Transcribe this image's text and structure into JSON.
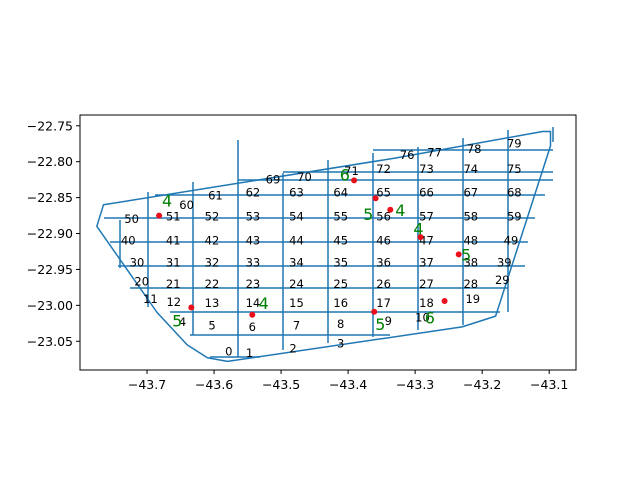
{
  "chart_data": {
    "type": "scatter",
    "title": "",
    "xlabel": "",
    "ylabel": "",
    "xlim": [
      -43.8,
      -43.06
    ],
    "ylim": [
      -23.09,
      -22.735
    ],
    "x_ticks": [
      -43.7,
      -43.6,
      -43.5,
      -43.4,
      -43.3,
      -43.2,
      -43.1
    ],
    "x_tick_labels": [
      "−43.7",
      "−43.6",
      "−43.5",
      "−43.4",
      "−43.3",
      "−43.2",
      "−43.1"
    ],
    "y_ticks": [
      -22.75,
      -22.8,
      -22.85,
      -22.9,
      -22.95,
      -23.0,
      -23.05
    ],
    "y_tick_labels": [
      "−22.75",
      "−22.80",
      "−22.85",
      "−22.90",
      "−22.95",
      "−23.00",
      "−23.05"
    ],
    "grid": false,
    "legend": "none",
    "colors": {
      "boundary": "#1f77b4",
      "points": "#e8101a",
      "marker_labels": "#008000"
    },
    "boundary": [
      [
        -43.11,
        -22.758
      ],
      [
        -43.098,
        -22.758
      ],
      [
        -43.098,
        -22.778
      ],
      [
        -43.18,
        -23.015
      ],
      [
        -43.23,
        -23.03
      ],
      [
        -43.58,
        -23.078
      ],
      [
        -43.61,
        -23.073
      ],
      [
        -43.64,
        -23.055
      ],
      [
        -43.685,
        -23.01
      ],
      [
        -43.775,
        -22.89
      ],
      [
        -43.765,
        -22.86
      ],
      [
        -43.33,
        -22.795
      ],
      [
        -43.11,
        -22.758
      ]
    ],
    "cell_labels": [
      {
        "text": "0",
        "x": -43.578,
        "y": -23.064
      },
      {
        "text": "1",
        "x": -43.547,
        "y": -23.066
      },
      {
        "text": "2",
        "x": -43.482,
        "y": -23.06
      },
      {
        "text": "3",
        "x": -43.411,
        "y": -23.053
      },
      {
        "text": "4",
        "x": -43.647,
        "y": -23.023
      },
      {
        "text": "5",
        "x": -43.603,
        "y": -23.028
      },
      {
        "text": "6",
        "x": -43.543,
        "y": -23.03
      },
      {
        "text": "7",
        "x": -43.477,
        "y": -23.028
      },
      {
        "text": "8",
        "x": -43.411,
        "y": -23.026
      },
      {
        "text": "9",
        "x": -43.34,
        "y": -23.022
      },
      {
        "text": "10",
        "x": -43.289,
        "y": -23.017
      },
      {
        "text": "11",
        "x": -43.695,
        "y": -22.991
      },
      {
        "text": "12",
        "x": -43.66,
        "y": -22.995
      },
      {
        "text": "13",
        "x": -43.603,
        "y": -22.997
      },
      {
        "text": "14",
        "x": -43.542,
        "y": -22.997
      },
      {
        "text": "15",
        "x": -43.477,
        "y": -22.997
      },
      {
        "text": "16",
        "x": -43.411,
        "y": -22.997
      },
      {
        "text": "17",
        "x": -43.347,
        "y": -22.997
      },
      {
        "text": "18",
        "x": -43.283,
        "y": -22.997
      },
      {
        "text": "19",
        "x": -43.214,
        "y": -22.991
      },
      {
        "text": "20",
        "x": -43.708,
        "y": -22.967
      },
      {
        "text": "21",
        "x": -43.661,
        "y": -22.97
      },
      {
        "text": "22",
        "x": -43.603,
        "y": -22.97
      },
      {
        "text": "23",
        "x": -43.542,
        "y": -22.97
      },
      {
        "text": "24",
        "x": -43.477,
        "y": -22.97
      },
      {
        "text": "25",
        "x": -43.411,
        "y": -22.97
      },
      {
        "text": "26",
        "x": -43.347,
        "y": -22.97
      },
      {
        "text": "27",
        "x": -43.283,
        "y": -22.97
      },
      {
        "text": "28",
        "x": -43.217,
        "y": -22.97
      },
      {
        "text": "29",
        "x": -43.17,
        "y": -22.965
      },
      {
        "text": "30",
        "x": -43.715,
        "y": -22.94
      },
      {
        "text": "31",
        "x": -43.661,
        "y": -22.94
      },
      {
        "text": "32",
        "x": -43.603,
        "y": -22.94
      },
      {
        "text": "33",
        "x": -43.542,
        "y": -22.94
      },
      {
        "text": "34",
        "x": -43.477,
        "y": -22.94
      },
      {
        "text": "35",
        "x": -43.411,
        "y": -22.94
      },
      {
        "text": "36",
        "x": -43.347,
        "y": -22.94
      },
      {
        "text": "37",
        "x": -43.283,
        "y": -22.94
      },
      {
        "text": "38",
        "x": -43.217,
        "y": -22.94
      },
      {
        "text": "39",
        "x": -43.167,
        "y": -22.94
      },
      {
        "text": "40",
        "x": -43.728,
        "y": -22.91
      },
      {
        "text": "41",
        "x": -43.661,
        "y": -22.91
      },
      {
        "text": "42",
        "x": -43.603,
        "y": -22.91
      },
      {
        "text": "43",
        "x": -43.542,
        "y": -22.91
      },
      {
        "text": "44",
        "x": -43.477,
        "y": -22.91
      },
      {
        "text": "45",
        "x": -43.411,
        "y": -22.91
      },
      {
        "text": "46",
        "x": -43.347,
        "y": -22.91
      },
      {
        "text": "47",
        "x": -43.283,
        "y": -22.91
      },
      {
        "text": "48",
        "x": -43.217,
        "y": -22.91
      },
      {
        "text": "49",
        "x": -43.157,
        "y": -22.91
      },
      {
        "text": "50",
        "x": -43.723,
        "y": -22.88
      },
      {
        "text": "51",
        "x": -43.661,
        "y": -22.876
      },
      {
        "text": "52",
        "x": -43.603,
        "y": -22.876
      },
      {
        "text": "53",
        "x": -43.542,
        "y": -22.876
      },
      {
        "text": "54",
        "x": -43.477,
        "y": -22.876
      },
      {
        "text": "55",
        "x": -43.411,
        "y": -22.876
      },
      {
        "text": "56",
        "x": -43.347,
        "y": -22.876
      },
      {
        "text": "57",
        "x": -43.283,
        "y": -22.876
      },
      {
        "text": "58",
        "x": -43.217,
        "y": -22.876
      },
      {
        "text": "59",
        "x": -43.152,
        "y": -22.876
      },
      {
        "text": "60",
        "x": -43.641,
        "y": -22.86
      },
      {
        "text": "61",
        "x": -43.598,
        "y": -22.847
      },
      {
        "text": "62",
        "x": -43.542,
        "y": -22.843
      },
      {
        "text": "63",
        "x": -43.477,
        "y": -22.843
      },
      {
        "text": "64",
        "x": -43.411,
        "y": -22.843
      },
      {
        "text": "65",
        "x": -43.347,
        "y": -22.843
      },
      {
        "text": "66",
        "x": -43.283,
        "y": -22.843
      },
      {
        "text": "67",
        "x": -43.217,
        "y": -22.843
      },
      {
        "text": "68",
        "x": -43.152,
        "y": -22.843
      },
      {
        "text": "69",
        "x": -43.512,
        "y": -22.825
      },
      {
        "text": "70",
        "x": -43.465,
        "y": -22.821
      },
      {
        "text": "71",
        "x": -43.395,
        "y": -22.813
      },
      {
        "text": "72",
        "x": -43.347,
        "y": -22.81
      },
      {
        "text": "73",
        "x": -43.283,
        "y": -22.81
      },
      {
        "text": "74",
        "x": -43.217,
        "y": -22.81
      },
      {
        "text": "75",
        "x": -43.152,
        "y": -22.81
      },
      {
        "text": "76",
        "x": -43.312,
        "y": -22.791
      },
      {
        "text": "77",
        "x": -43.271,
        "y": -22.787
      },
      {
        "text": "78",
        "x": -43.212,
        "y": -22.782
      },
      {
        "text": "79",
        "x": -43.152,
        "y": -22.775
      }
    ],
    "points": [
      {
        "x": -43.682,
        "y": -22.875
      },
      {
        "x": -43.391,
        "y": -22.826
      },
      {
        "x": -43.359,
        "y": -22.851
      },
      {
        "x": -43.337,
        "y": -22.867
      },
      {
        "x": -43.292,
        "y": -22.905
      },
      {
        "x": -43.235,
        "y": -22.929
      },
      {
        "x": -43.634,
        "y": -23.003
      },
      {
        "x": -43.543,
        "y": -23.013
      },
      {
        "x": -43.361,
        "y": -23.009
      },
      {
        "x": -43.256,
        "y": -22.994
      }
    ],
    "marker_labels": [
      {
        "text": "4",
        "x": -43.67,
        "y": -22.854
      },
      {
        "text": "6",
        "x": -43.405,
        "y": -22.818
      },
      {
        "text": "5",
        "x": -43.37,
        "y": -22.873
      },
      {
        "text": "4",
        "x": -43.322,
        "y": -22.867
      },
      {
        "text": "4",
        "x": -43.295,
        "y": -22.893
      },
      {
        "text": "5",
        "x": -43.224,
        "y": -22.929
      },
      {
        "text": "5",
        "x": -43.655,
        "y": -23.021
      },
      {
        "text": "4",
        "x": -43.526,
        "y": -22.997
      },
      {
        "text": "5",
        "x": -43.352,
        "y": -23.026
      },
      {
        "text": "6",
        "x": -43.278,
        "y": -23.017
      }
    ]
  }
}
